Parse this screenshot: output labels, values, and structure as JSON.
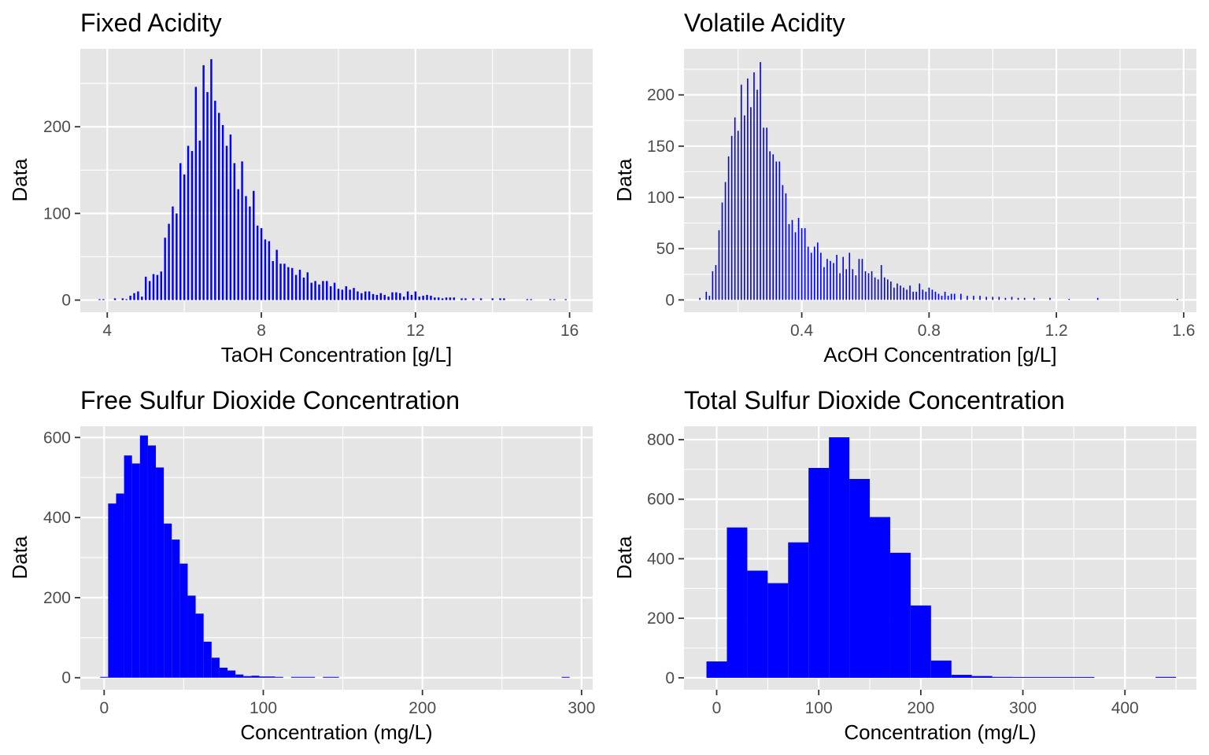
{
  "chart_data": [
    {
      "type": "bar",
      "title": "Fixed Acidity",
      "xlabel": "TaOH Concentration [g/L]",
      "ylabel": "Data",
      "xlim": [
        3.3,
        16.6
      ],
      "ylim": [
        -14,
        290
      ],
      "xticks": [
        4,
        8,
        12,
        16
      ],
      "xtick_labels": [
        "4",
        "8",
        "12",
        "16"
      ],
      "yticks": [
        0,
        100,
        200
      ],
      "ytick_labels": [
        "0",
        "100",
        "200"
      ],
      "grid": true,
      "color": "#0000ff",
      "bar_width": 0.05,
      "x": [
        3.8,
        3.9,
        4.2,
        4.4,
        4.5,
        4.6,
        4.7,
        4.8,
        4.9,
        5.0,
        5.1,
        5.2,
        5.3,
        5.4,
        5.5,
        5.6,
        5.7,
        5.8,
        5.9,
        6.0,
        6.1,
        6.2,
        6.3,
        6.4,
        6.5,
        6.6,
        6.7,
        6.8,
        6.9,
        7.0,
        7.1,
        7.2,
        7.3,
        7.4,
        7.5,
        7.6,
        7.7,
        7.8,
        7.9,
        8.0,
        8.1,
        8.2,
        8.3,
        8.4,
        8.5,
        8.6,
        8.7,
        8.8,
        8.9,
        9.0,
        9.1,
        9.2,
        9.3,
        9.4,
        9.5,
        9.6,
        9.7,
        9.8,
        9.9,
        10.0,
        10.1,
        10.2,
        10.3,
        10.4,
        10.5,
        10.6,
        10.7,
        10.8,
        10.9,
        11.0,
        11.1,
        11.2,
        11.3,
        11.4,
        11.5,
        11.6,
        11.7,
        11.8,
        11.9,
        12.0,
        12.1,
        12.2,
        12.3,
        12.4,
        12.5,
        12.6,
        12.7,
        12.8,
        12.9,
        13.0,
        13.2,
        13.3,
        13.5,
        13.7,
        14.0,
        14.2,
        14.3,
        14.9,
        15.0,
        15.5,
        15.6,
        15.9
      ],
      "values": [
        1,
        1,
        2,
        2,
        1,
        5,
        8,
        10,
        4,
        27,
        22,
        30,
        29,
        33,
        72,
        88,
        108,
        100,
        158,
        145,
        178,
        172,
        246,
        184,
        271,
        240,
        278,
        230,
        216,
        202,
        178,
        191,
        158,
        128,
        160,
        120,
        108,
        126,
        86,
        83,
        70,
        68,
        45,
        58,
        42,
        42,
        38,
        37,
        29,
        35,
        26,
        32,
        20,
        22,
        18,
        22,
        22,
        16,
        20,
        13,
        12,
        16,
        12,
        14,
        10,
        8,
        10,
        10,
        7,
        6,
        8,
        6,
        4,
        9,
        9,
        8,
        4,
        10,
        6,
        10,
        4,
        5,
        6,
        5,
        3,
        3,
        2,
        3,
        3,
        3,
        2,
        2,
        2,
        2,
        2,
        2,
        2,
        1,
        1,
        1,
        1,
        1
      ]
    },
    {
      "type": "bar",
      "title": "Volatile Acidity",
      "xlabel": "AcOH Concentration [g/L]",
      "ylabel": "Data",
      "xlim": [
        0.03,
        1.64
      ],
      "ylim": [
        -12,
        245
      ],
      "xticks": [
        0.4,
        0.8,
        1.2,
        1.6
      ],
      "xtick_labels": [
        "0.4",
        "0.8",
        "1.2",
        "1.6"
      ],
      "yticks": [
        0,
        50,
        100,
        150,
        200
      ],
      "ytick_labels": [
        "0",
        "50",
        "100",
        "150",
        "200"
      ],
      "grid": true,
      "color": "#0000ff",
      "bar_width": 0.004,
      "x": [
        0.08,
        0.1,
        0.11,
        0.12,
        0.13,
        0.14,
        0.15,
        0.16,
        0.17,
        0.18,
        0.19,
        0.2,
        0.21,
        0.22,
        0.23,
        0.24,
        0.25,
        0.26,
        0.27,
        0.28,
        0.29,
        0.3,
        0.31,
        0.32,
        0.33,
        0.34,
        0.35,
        0.36,
        0.37,
        0.38,
        0.39,
        0.4,
        0.41,
        0.42,
        0.43,
        0.44,
        0.45,
        0.46,
        0.47,
        0.48,
        0.49,
        0.5,
        0.51,
        0.52,
        0.53,
        0.54,
        0.55,
        0.56,
        0.57,
        0.58,
        0.59,
        0.6,
        0.61,
        0.62,
        0.63,
        0.64,
        0.65,
        0.66,
        0.67,
        0.68,
        0.69,
        0.7,
        0.71,
        0.72,
        0.73,
        0.74,
        0.75,
        0.76,
        0.77,
        0.78,
        0.79,
        0.8,
        0.81,
        0.82,
        0.83,
        0.84,
        0.85,
        0.86,
        0.87,
        0.88,
        0.9,
        0.92,
        0.94,
        0.96,
        0.98,
        1.0,
        1.02,
        1.04,
        1.06,
        1.08,
        1.1,
        1.13,
        1.18,
        1.24,
        1.33,
        1.58
      ],
      "values": [
        2,
        8,
        4,
        28,
        34,
        68,
        95,
        115,
        140,
        160,
        178,
        165,
        210,
        180,
        216,
        188,
        222,
        205,
        232,
        168,
        168,
        145,
        142,
        135,
        135,
        112,
        104,
        74,
        78,
        66,
        80,
        70,
        70,
        52,
        46,
        52,
        56,
        46,
        32,
        40,
        38,
        36,
        44,
        26,
        42,
        30,
        46,
        30,
        24,
        40,
        40,
        28,
        26,
        28,
        22,
        20,
        34,
        22,
        20,
        18,
        12,
        16,
        14,
        12,
        10,
        14,
        8,
        8,
        16,
        10,
        8,
        12,
        10,
        8,
        6,
        4,
        8,
        4,
        6,
        6,
        6,
        4,
        4,
        4,
        3,
        3,
        3,
        2,
        3,
        2,
        2,
        2,
        2,
        1,
        2,
        1
      ]
    },
    {
      "type": "bar",
      "title": "Free Sulfur Dioxide Concentration",
      "xlabel": "Concentration (mg/L)",
      "ylabel": "Data",
      "xlim": [
        -15,
        307
      ],
      "ylim": [
        -30,
        628
      ],
      "xticks": [
        0,
        100,
        200,
        300
      ],
      "xtick_labels": [
        "0",
        "100",
        "200",
        "300"
      ],
      "yticks": [
        0,
        200,
        400,
        600
      ],
      "ytick_labels": [
        "0",
        "200",
        "400",
        "600"
      ],
      "grid": true,
      "color": "#0000ff",
      "bar_width": 5,
      "x": [
        0,
        5,
        10,
        15,
        20,
        25,
        30,
        35,
        40,
        45,
        50,
        55,
        60,
        65,
        70,
        75,
        80,
        85,
        90,
        95,
        100,
        105,
        110,
        120,
        125,
        130,
        140,
        145,
        290
      ],
      "values": [
        2,
        435,
        460,
        555,
        535,
        605,
        580,
        525,
        385,
        345,
        285,
        205,
        160,
        90,
        50,
        25,
        18,
        8,
        4,
        5,
        3,
        3,
        2,
        2,
        2,
        2,
        1,
        1,
        1
      ]
    },
    {
      "type": "bar",
      "title": "Total Sulfur Dioxide Concentration",
      "xlabel": "Concentration (mg/L)",
      "ylabel": "Data",
      "xlim": [
        -32,
        470
      ],
      "ylim": [
        -40,
        845
      ],
      "xticks": [
        0,
        100,
        200,
        300,
        400
      ],
      "xtick_labels": [
        "0",
        "100",
        "200",
        "300",
        "400"
      ],
      "yticks": [
        0,
        200,
        400,
        600,
        800
      ],
      "ytick_labels": [
        "0",
        "200",
        "400",
        "600",
        "800"
      ],
      "grid": true,
      "color": "#0000ff",
      "bar_width": 20,
      "x": [
        0,
        20,
        40,
        60,
        80,
        100,
        120,
        140,
        160,
        180,
        200,
        220,
        240,
        260,
        280,
        300,
        320,
        340,
        360,
        440
      ],
      "values": [
        55,
        505,
        360,
        318,
        455,
        705,
        808,
        668,
        540,
        420,
        243,
        58,
        10,
        6,
        3,
        2,
        2,
        2,
        1,
        3
      ]
    }
  ]
}
